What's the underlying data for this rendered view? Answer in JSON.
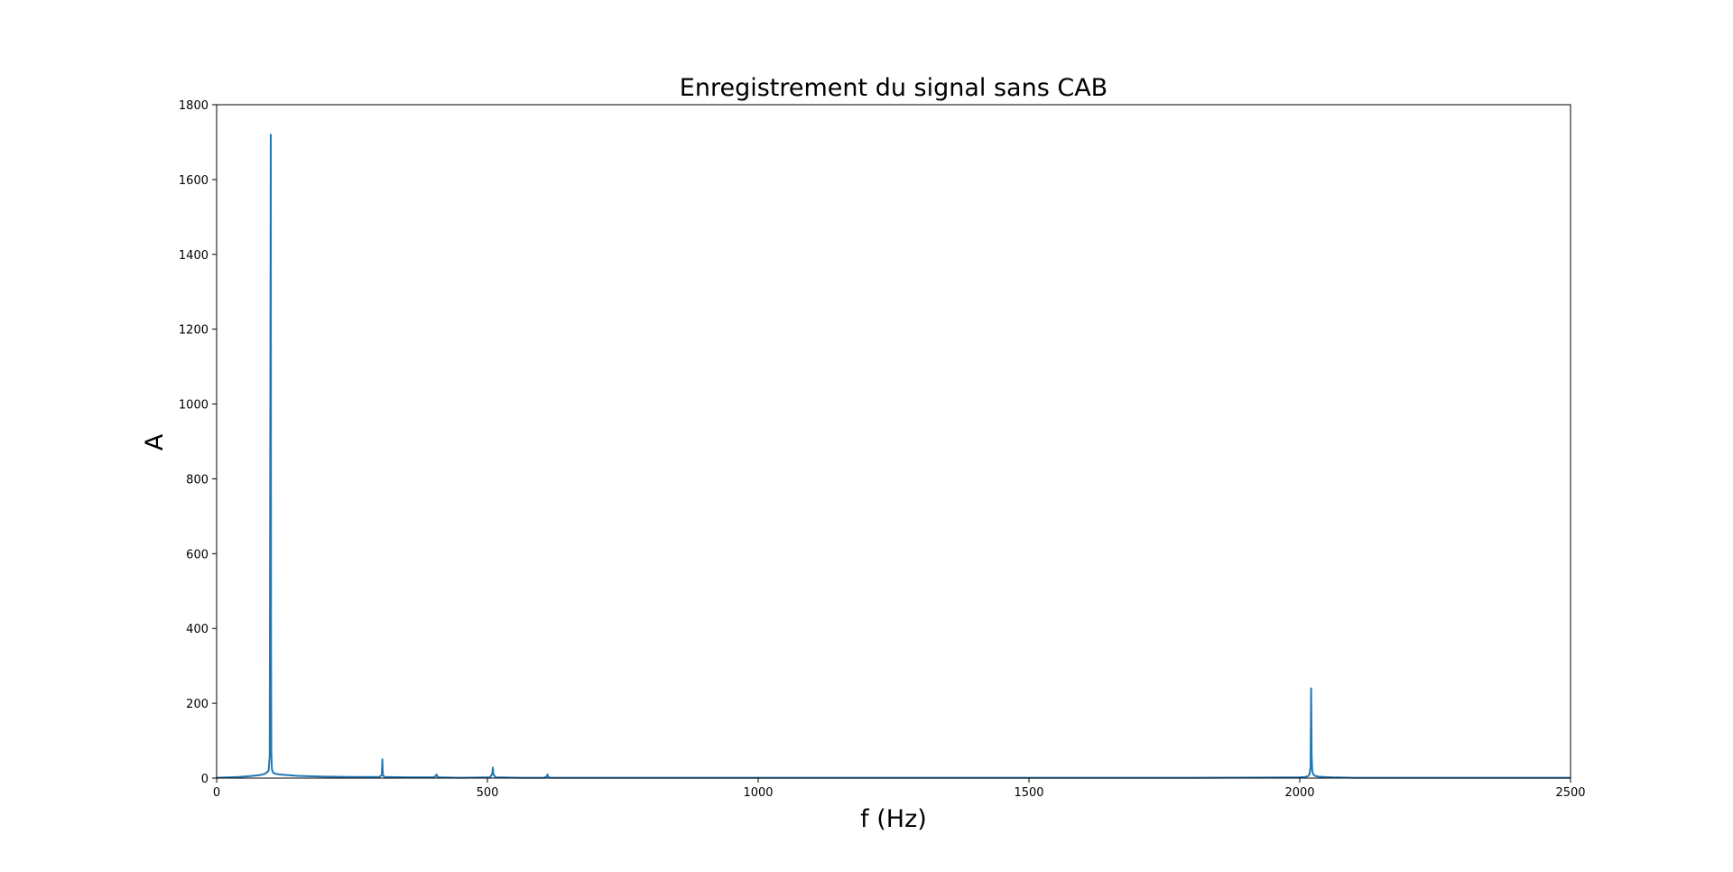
{
  "chart_data": {
    "type": "line",
    "title": "Enregistrement du signal sans CAB",
    "xlabel": "f (Hz)",
    "ylabel": "A",
    "xlim": [
      0,
      2500
    ],
    "ylim": [
      0,
      1800
    ],
    "xticks": [
      0,
      500,
      1000,
      1500,
      2000,
      2500
    ],
    "yticks": [
      0,
      200,
      400,
      600,
      800,
      1000,
      1200,
      1400,
      1600,
      1800
    ],
    "grid": false,
    "legend": "none",
    "series": [
      {
        "color": "#1f77b4",
        "x": [
          0,
          20,
          40,
          60,
          80,
          90,
          96,
          98,
          100,
          100.5,
          101,
          102,
          104,
          108,
          115,
          130,
          150,
          170,
          200,
          250,
          300,
          305,
          306,
          307,
          310,
          350,
          400,
          405,
          406,
          407,
          410,
          450,
          505,
          509,
          510,
          511,
          515,
          560,
          605,
          610,
          611,
          612,
          615,
          700,
          800,
          1000,
          1200,
          1500,
          1800,
          2000,
          2010,
          2015,
          2018,
          2020,
          2021,
          2022,
          2023,
          2025,
          2028,
          2035,
          2045,
          2060,
          2100,
          2200,
          2300,
          2400,
          2500
        ],
        "y": [
          1,
          2,
          3,
          5,
          8,
          12,
          20,
          60,
          1720,
          360,
          70,
          25,
          15,
          12,
          10,
          8,
          6,
          5,
          4,
          3,
          3,
          8,
          50,
          8,
          3,
          2,
          2,
          6,
          10,
          5,
          2,
          1,
          2,
          12,
          28,
          10,
          2,
          1,
          1,
          5,
          10,
          4,
          1,
          1,
          1,
          1,
          1,
          1,
          1,
          2,
          3,
          5,
          10,
          30,
          240,
          60,
          20,
          10,
          6,
          4,
          3,
          2,
          1,
          1,
          1,
          1,
          1
        ]
      }
    ]
  }
}
